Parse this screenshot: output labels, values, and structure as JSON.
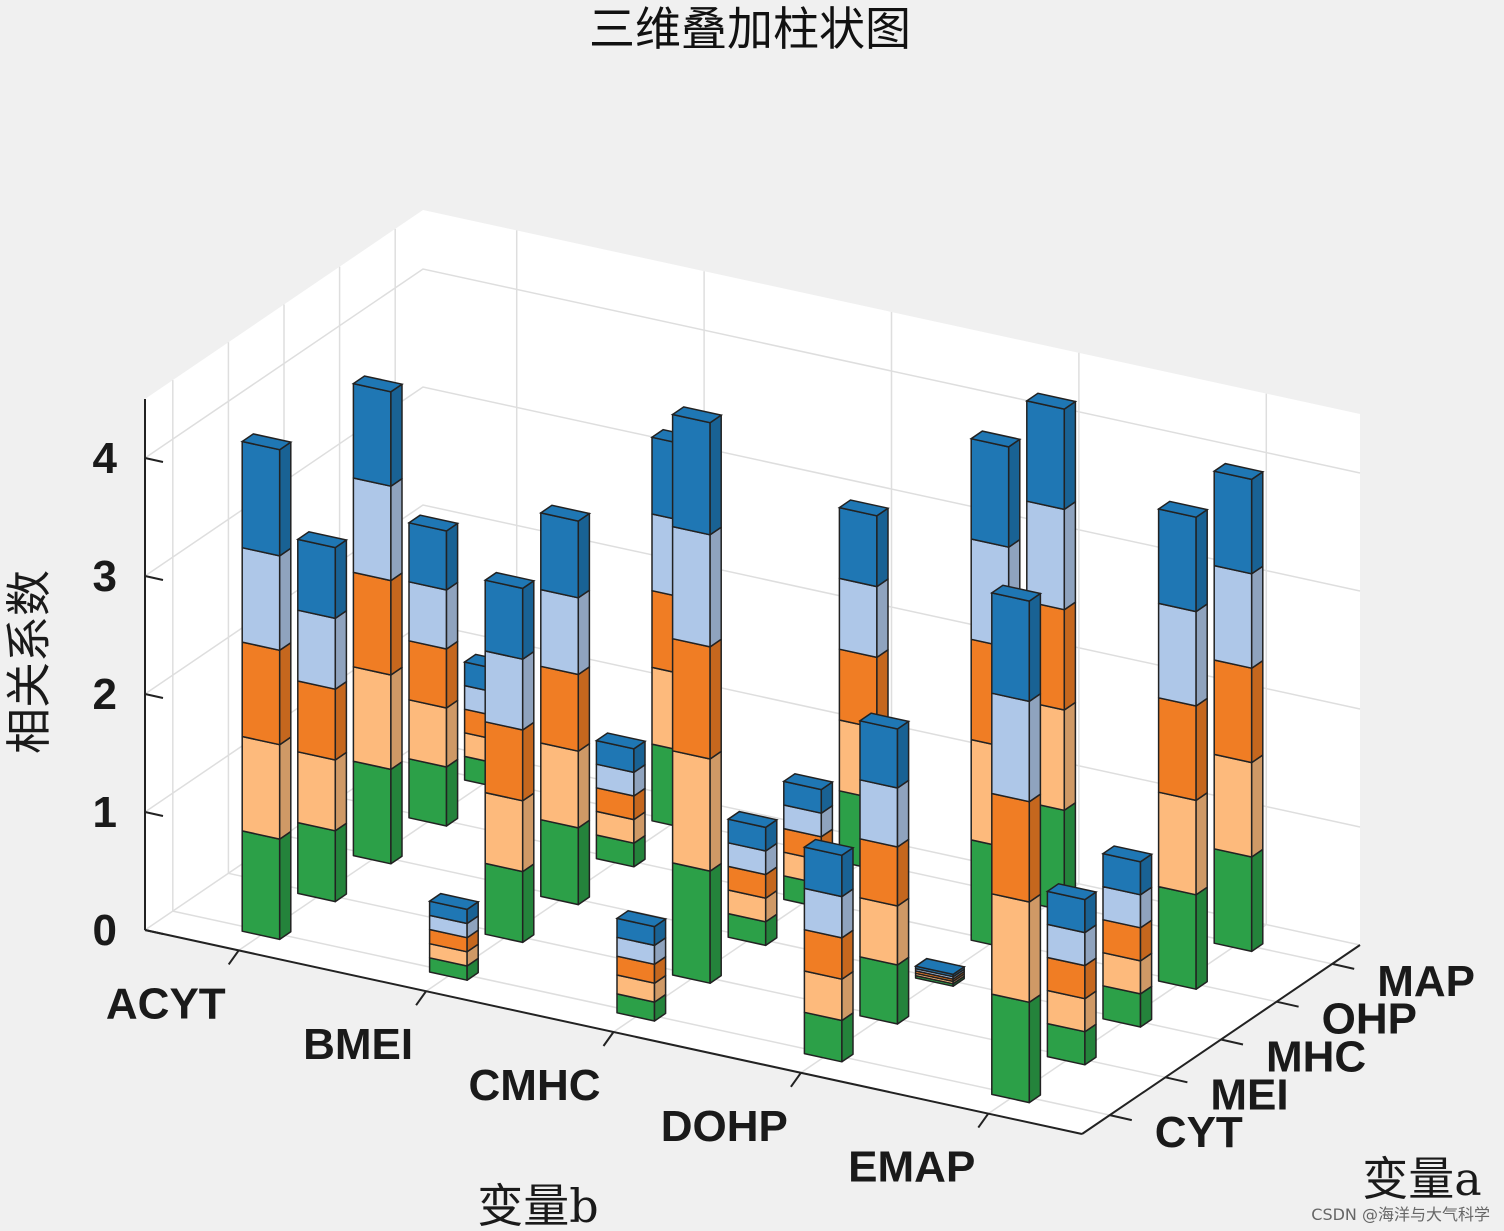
{
  "chart_data": {
    "type": "bar3-stacked",
    "title": "三维叠加柱状图",
    "xlabel": "变量b",
    "ylabel": "变量a",
    "zlabel": "相关系数",
    "x_categories": [
      "ACYT",
      "BMEI",
      "CMHC",
      "DOHP",
      "EMAP"
    ],
    "y_categories": [
      "CYT",
      "MEI",
      "MHC",
      "OHP",
      "MAP"
    ],
    "zlim": [
      0,
      4.5
    ],
    "z_ticks": [
      "0",
      "1",
      "2",
      "3",
      "4"
    ],
    "grid": true,
    "series_colors": [
      "#2ca048",
      "#fdba7c",
      "#f07d24",
      "#aec7e8",
      "#1f77b4"
    ],
    "stacks": [
      {
        "x": "ACYT",
        "y": "CYT",
        "values": [
          0.85,
          0.8,
          0.8,
          0.8,
          0.9
        ]
      },
      {
        "x": "ACYT",
        "y": "MEI",
        "values": [
          0.6,
          0.6,
          0.6,
          0.6,
          0.6
        ]
      },
      {
        "x": "ACYT",
        "y": "MHC",
        "values": [
          0.8,
          0.8,
          0.8,
          0.8,
          0.8
        ]
      },
      {
        "x": "ACYT",
        "y": "OHP",
        "values": [
          0.5,
          0.5,
          0.5,
          0.5,
          0.5
        ]
      },
      {
        "x": "ACYT",
        "y": "MAP",
        "values": [
          0.2,
          0.2,
          0.2,
          0.2,
          0.2
        ]
      },
      {
        "x": "BMEI",
        "y": "CYT",
        "values": [
          0.12,
          0.12,
          0.12,
          0.12,
          0.12
        ]
      },
      {
        "x": "BMEI",
        "y": "MEI",
        "values": [
          0.6,
          0.6,
          0.6,
          0.6,
          0.6
        ]
      },
      {
        "x": "BMEI",
        "y": "MHC",
        "values": [
          0.65,
          0.65,
          0.65,
          0.65,
          0.65
        ]
      },
      {
        "x": "BMEI",
        "y": "OHP",
        "values": [
          0.2,
          0.2,
          0.2,
          0.2,
          0.2
        ]
      },
      {
        "x": "BMEI",
        "y": "MAP",
        "values": [
          0.65,
          0.65,
          0.65,
          0.65,
          0.65
        ]
      },
      {
        "x": "CMHC",
        "y": "CYT",
        "values": [
          0.16,
          0.16,
          0.16,
          0.16,
          0.16
        ]
      },
      {
        "x": "CMHC",
        "y": "MEI",
        "values": [
          0.95,
          0.95,
          0.95,
          0.95,
          0.95
        ]
      },
      {
        "x": "CMHC",
        "y": "MHC",
        "values": [
          0.2,
          0.2,
          0.2,
          0.2,
          0.2
        ]
      },
      {
        "x": "CMHC",
        "y": "OHP",
        "values": [
          0.2,
          0.2,
          0.2,
          0.2,
          0.2
        ]
      },
      {
        "x": "CMHC",
        "y": "MAP",
        "values": [
          0.6,
          0.6,
          0.6,
          0.6,
          0.6
        ]
      },
      {
        "x": "DOHP",
        "y": "CYT",
        "values": [
          0.35,
          0.35,
          0.35,
          0.35,
          0.35
        ]
      },
      {
        "x": "DOHP",
        "y": "MEI",
        "values": [
          0.5,
          0.5,
          0.5,
          0.5,
          0.5
        ]
      },
      {
        "x": "DOHP",
        "y": "MHC",
        "values": [
          0.02,
          0.02,
          0.02,
          0.02,
          0.02
        ]
      },
      {
        "x": "DOHP",
        "y": "OHP",
        "values": [
          0.85,
          0.85,
          0.85,
          0.85,
          0.85
        ]
      },
      {
        "x": "DOHP",
        "y": "MAP",
        "values": [
          0.85,
          0.85,
          0.85,
          0.85,
          0.85
        ]
      },
      {
        "x": "EMAP",
        "y": "CYT",
        "values": [
          0.85,
          0.85,
          0.85,
          0.85,
          0.85
        ]
      },
      {
        "x": "EMAP",
        "y": "MEI",
        "values": [
          0.28,
          0.28,
          0.28,
          0.28,
          0.28
        ]
      },
      {
        "x": "EMAP",
        "y": "MHC",
        "values": [
          0.28,
          0.28,
          0.28,
          0.28,
          0.28
        ]
      },
      {
        "x": "EMAP",
        "y": "OHP",
        "values": [
          0.8,
          0.8,
          0.8,
          0.8,
          0.8
        ]
      },
      {
        "x": "EMAP",
        "y": "MAP",
        "values": [
          0.8,
          0.8,
          0.8,
          0.8,
          0.8
        ]
      }
    ]
  },
  "watermark": "CSDN @海洋与大气科学"
}
